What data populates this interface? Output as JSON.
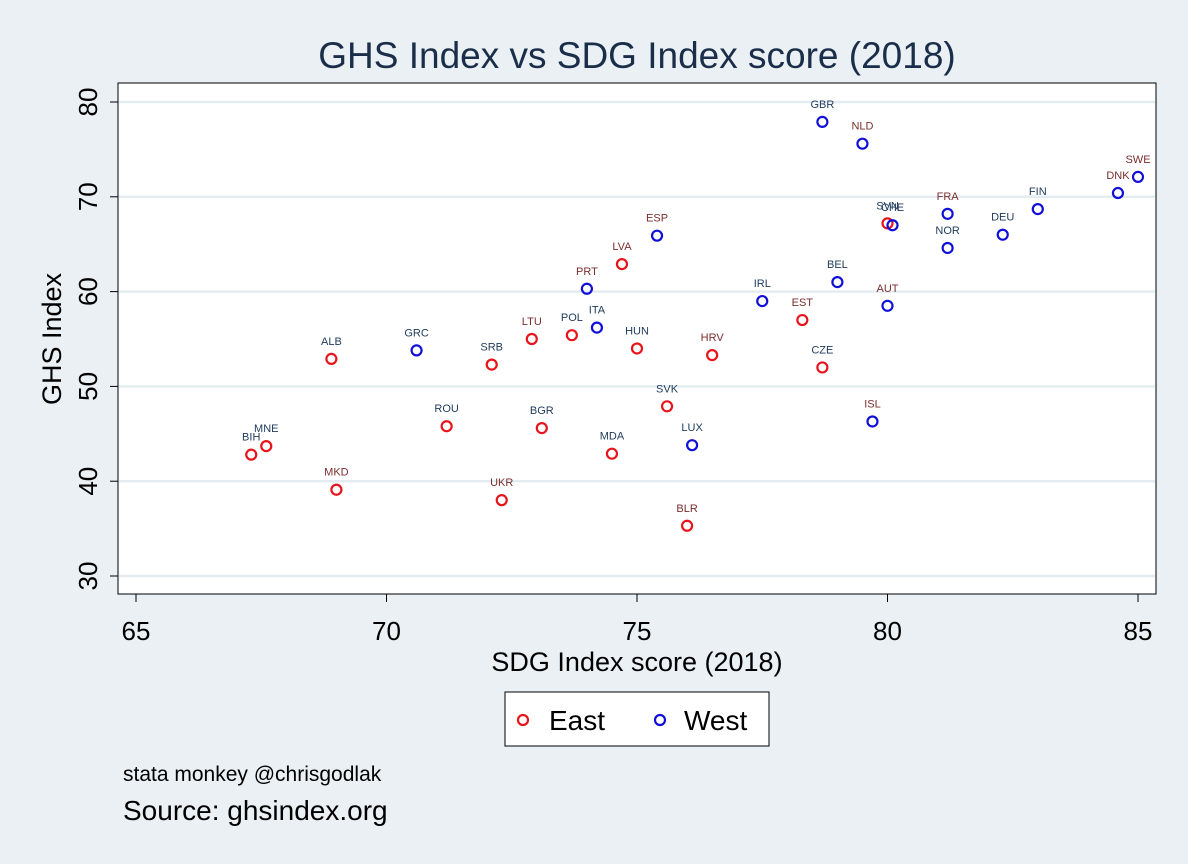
{
  "chart_data": {
    "type": "scatter",
    "title": "GHS Index vs SDG Index score (2018)",
    "xlabel": "SDG Index score (2018)",
    "ylabel": "GHS Index",
    "xlim": [
      65,
      85
    ],
    "ylim": [
      30,
      80
    ],
    "xticks": [
      65,
      70,
      75,
      80,
      85
    ],
    "yticks": [
      30,
      40,
      50,
      60,
      70,
      80
    ],
    "grid": "horizontal",
    "legend_position": "bottom",
    "series": [
      {
        "name": "East",
        "color": "#e8141c",
        "points": [
          {
            "label": "BIH",
            "x": 67.3,
            "y": 42.8
          },
          {
            "label": "MNE",
            "x": 67.6,
            "y": 43.7
          },
          {
            "label": "ALB",
            "x": 68.9,
            "y": 52.9
          },
          {
            "label": "MKD",
            "x": 69.0,
            "y": 39.1
          },
          {
            "label": "ROU",
            "x": 71.2,
            "y": 45.8
          },
          {
            "label": "SRB",
            "x": 72.1,
            "y": 52.3
          },
          {
            "label": "UKR",
            "x": 72.3,
            "y": 38.0
          },
          {
            "label": "LTU",
            "x": 72.9,
            "y": 55.0
          },
          {
            "label": "BGR",
            "x": 73.1,
            "y": 45.6
          },
          {
            "label": "POL",
            "x": 73.7,
            "y": 55.4
          },
          {
            "label": "MDA",
            "x": 74.5,
            "y": 42.9
          },
          {
            "label": "LVA",
            "x": 74.7,
            "y": 62.9
          },
          {
            "label": "HUN",
            "x": 75.0,
            "y": 54.0
          },
          {
            "label": "SVK",
            "x": 75.6,
            "y": 47.9
          },
          {
            "label": "BLR",
            "x": 76.0,
            "y": 35.3
          },
          {
            "label": "HRV",
            "x": 76.5,
            "y": 53.3
          },
          {
            "label": "EST",
            "x": 78.3,
            "y": 57.0
          },
          {
            "label": "CZE",
            "x": 78.7,
            "y": 52.0
          },
          {
            "label": "SVN",
            "x": 80.0,
            "y": 67.2
          }
        ]
      },
      {
        "name": "West",
        "color": "#1010d8",
        "points": [
          {
            "label": "GRC",
            "x": 70.6,
            "y": 53.8
          },
          {
            "label": "PRT",
            "x": 74.0,
            "y": 60.3
          },
          {
            "label": "ITA",
            "x": 74.2,
            "y": 56.2
          },
          {
            "label": "ESP",
            "x": 75.4,
            "y": 65.9
          },
          {
            "label": "LUX",
            "x": 76.1,
            "y": 43.8
          },
          {
            "label": "IRL",
            "x": 77.5,
            "y": 59.0
          },
          {
            "label": "GBR",
            "x": 78.7,
            "y": 77.9
          },
          {
            "label": "BEL",
            "x": 79.0,
            "y": 61.0
          },
          {
            "label": "NLD",
            "x": 79.5,
            "y": 75.6
          },
          {
            "label": "ISL",
            "x": 79.7,
            "y": 46.3
          },
          {
            "label": "AUT",
            "x": 80.0,
            "y": 58.5
          },
          {
            "label": "CHE",
            "x": 80.1,
            "y": 67.0
          },
          {
            "label": "FRA",
            "x": 81.2,
            "y": 68.2
          },
          {
            "label": "NOR",
            "x": 81.2,
            "y": 64.6
          },
          {
            "label": "DEU",
            "x": 82.3,
            "y": 66.0
          },
          {
            "label": "FIN",
            "x": 83.0,
            "y": 68.7
          },
          {
            "label": "DNK",
            "x": 84.6,
            "y": 70.4
          },
          {
            "label": "SWE",
            "x": 85.0,
            "y": 72.1
          }
        ]
      }
    ],
    "label_colors": [
      "#7a2e2e",
      "#1e3a5c"
    ]
  },
  "footer": {
    "credit": "stata monkey @chrisgodlak",
    "source": "Source: ghsindex.org"
  }
}
